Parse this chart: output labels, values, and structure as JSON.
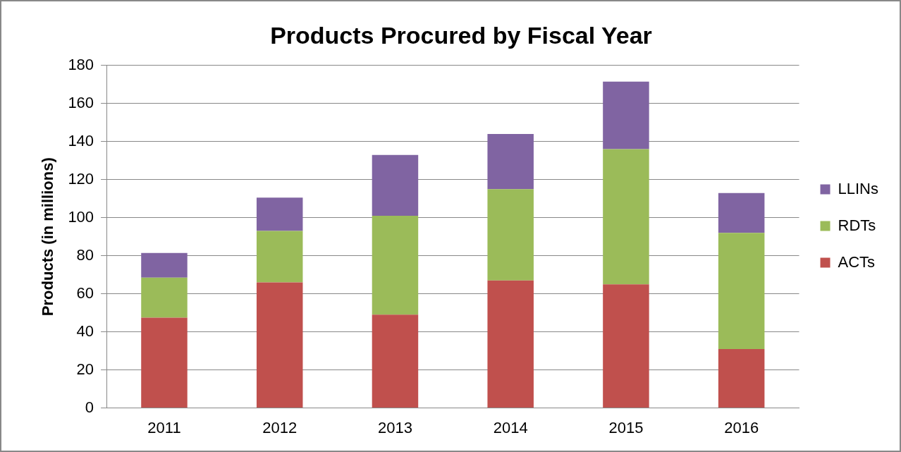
{
  "chart_data": {
    "type": "bar",
    "title": "Products Procured by Fiscal Year",
    "ylabel": "Products (in millions)",
    "categories": [
      "2011",
      "2012",
      "2013",
      "2014",
      "2015",
      "2016"
    ],
    "stacked": true,
    "series": [
      {
        "name": "ACTs",
        "color": "#c0504d",
        "values": [
          47.5,
          66,
          49,
          67,
          65,
          31
        ]
      },
      {
        "name": "RDTs",
        "color": "#9bbb59",
        "values": [
          21,
          27,
          52,
          48,
          71,
          61
        ]
      },
      {
        "name": "LLINs",
        "color": "#8064a2",
        "values": [
          13,
          17.5,
          32,
          29,
          35.5,
          21
        ]
      }
    ],
    "ylim": [
      0,
      180
    ],
    "yticks": [
      0,
      20,
      40,
      60,
      80,
      100,
      120,
      140,
      160,
      180
    ],
    "grid": "y",
    "legend": "right"
  }
}
